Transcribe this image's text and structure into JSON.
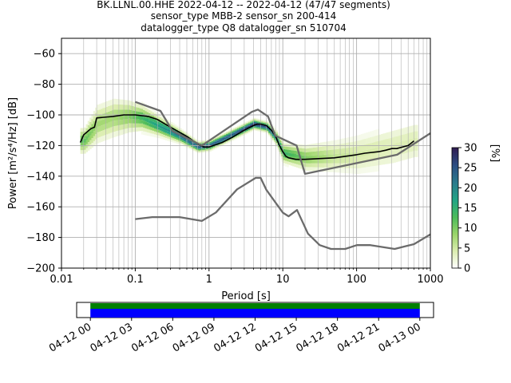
{
  "title_lines": [
    "BK.LLNL.00.HHE   2022-04-12 -- 2022-04-12  (47/47 segments)",
    "sensor_type MBB-2 sensor_sn 200-414",
    "datalogger_type Q8 datalogger_sn 510704"
  ],
  "colors": {
    "nlnm_nhnm": "#6b6b6b",
    "mean_curve": "#000000",
    "grid": "#b0b0b0",
    "timeline_green": "#008000",
    "timeline_blue": "#0000ff",
    "cmap": [
      "#ffffff",
      "#dcedb0",
      "#9bd56a",
      "#4dbb5a",
      "#22a584",
      "#2a7d8c",
      "#2c4f84",
      "#311c52"
    ]
  },
  "chart_data": [
    {
      "type": "heatmap",
      "subtype": "probabilistic power spectral density",
      "xlabel": "Period [s]",
      "ylabel": "Power [m²/s⁴/Hz] [dB]",
      "x_scale": "log",
      "xlim": [
        0.01,
        1000
      ],
      "ylim": [
        -200,
        -50
      ],
      "x_ticks": [
        0.01,
        0.1,
        1,
        10,
        100,
        1000
      ],
      "x_tick_labels": [
        "0.01",
        "0.1",
        "1",
        "10",
        "100",
        "1000"
      ],
      "y_ticks": [
        -200,
        -180,
        -160,
        -140,
        -120,
        -100,
        -80,
        -60
      ],
      "y_tick_labels": [
        "−200",
        "−180",
        "−160",
        "−140",
        "−120",
        "−100",
        "−80",
        "−60"
      ],
      "grid": true,
      "colorbar": {
        "label": "[%]",
        "range": [
          0,
          30
        ],
        "ticks": [
          0,
          5,
          10,
          15,
          20,
          25,
          30
        ],
        "tick_labels": [
          "0",
          "5",
          "10",
          "15",
          "20",
          "25",
          "30"
        ]
      },
      "density_band": [
        {
          "x": 0.02,
          "center": -117,
          "spread": 8,
          "peak": 12
        },
        {
          "x": 0.03,
          "center": -106,
          "spread": 12,
          "peak": 8
        },
        {
          "x": 0.05,
          "center": -102,
          "spread": 12,
          "peak": 8
        },
        {
          "x": 0.08,
          "center": -101,
          "spread": 10,
          "peak": 10
        },
        {
          "x": 0.12,
          "center": -102,
          "spread": 8,
          "peak": 14
        },
        {
          "x": 0.2,
          "center": -107,
          "spread": 6,
          "peak": 18
        },
        {
          "x": 0.4,
          "center": -114,
          "spread": 4,
          "peak": 22
        },
        {
          "x": 0.7,
          "center": -121,
          "spread": 3,
          "peak": 25
        },
        {
          "x": 1,
          "center": -120,
          "spread": 3,
          "peak": 25
        },
        {
          "x": 2,
          "center": -113,
          "spread": 3,
          "peak": 25
        },
        {
          "x": 4,
          "center": -106,
          "spread": 3,
          "peak": 28
        },
        {
          "x": 6,
          "center": -108,
          "spread": 3,
          "peak": 25
        },
        {
          "x": 8,
          "center": -115,
          "spread": 4,
          "peak": 20
        },
        {
          "x": 10,
          "center": -125,
          "spread": 6,
          "peak": 15
        },
        {
          "x": 20,
          "center": -128,
          "spread": 8,
          "peak": 10
        },
        {
          "x": 50,
          "center": -127,
          "spread": 10,
          "peak": 6
        },
        {
          "x": 100,
          "center": -126,
          "spread": 12,
          "peak": 5
        },
        {
          "x": 300,
          "center": -121,
          "spread": 14,
          "peak": 4
        },
        {
          "x": 600,
          "center": -117,
          "spread": 14,
          "peak": 4
        }
      ],
      "series": [
        {
          "role": "mean",
          "x": [
            0.018,
            0.02,
            0.025,
            0.028,
            0.03,
            0.05,
            0.07,
            0.1,
            0.15,
            0.2,
            0.3,
            0.5,
            0.7,
            0.85,
            1,
            1.5,
            2,
            3,
            4,
            4.5,
            5,
            6,
            7,
            8,
            9,
            10,
            11,
            12,
            15,
            20,
            50,
            100,
            130,
            200,
            250,
            300,
            350,
            500,
            600
          ],
          "y": [
            -118,
            -113,
            -109,
            -108,
            -102,
            -101,
            -100,
            -100,
            -101,
            -103,
            -108,
            -114,
            -119,
            -121,
            -121,
            -118,
            -115,
            -110,
            -107,
            -106,
            -106,
            -107,
            -110,
            -114,
            -120,
            -124,
            -127,
            -128,
            -129,
            -129,
            -128,
            -126,
            -125,
            -124,
            -123,
            -122,
            -122,
            -120,
            -117
          ]
        },
        {
          "role": "NHNM",
          "x": [
            0.1,
            0.22,
            0.32,
            0.8,
            3.8,
            4.6,
            6.3,
            7.9,
            15.4,
            20,
            354.8,
            1000
          ],
          "y": [
            -91.5,
            -97.4,
            -110.5,
            -120,
            -98,
            -96.5,
            -101,
            -113.5,
            -120,
            -138.5,
            -126,
            -112
          ]
        },
        {
          "role": "NLNM",
          "x": [
            0.1,
            0.17,
            0.4,
            0.8,
            1.24,
            2.4,
            4.3,
            5,
            6,
            10,
            12,
            15.6,
            21.9,
            31.6,
            45,
            70,
            101,
            154,
            328,
            600,
            1000
          ],
          "y": [
            -168,
            -166.7,
            -166.7,
            -169.2,
            -163.7,
            -148.6,
            -141.1,
            -141.1,
            -149,
            -163.8,
            -166.2,
            -162.1,
            -177.5,
            -185,
            -187.5,
            -187.5,
            -185,
            -185,
            -187.5,
            -184.4,
            -178
          ]
        }
      ]
    },
    {
      "type": "bar",
      "subtype": "data coverage timeline",
      "x_tick_labels": [
        "04-12 00",
        "04-12 03",
        "04-12 06",
        "04-12 09",
        "04-12 12",
        "04-12 15",
        "04-12 18",
        "04-12 21",
        "04-13 00"
      ],
      "coverage_fraction": 1.0,
      "xlim_hours": [
        -1,
        25
      ],
      "bar_range_hours": [
        0,
        24
      ]
    }
  ]
}
